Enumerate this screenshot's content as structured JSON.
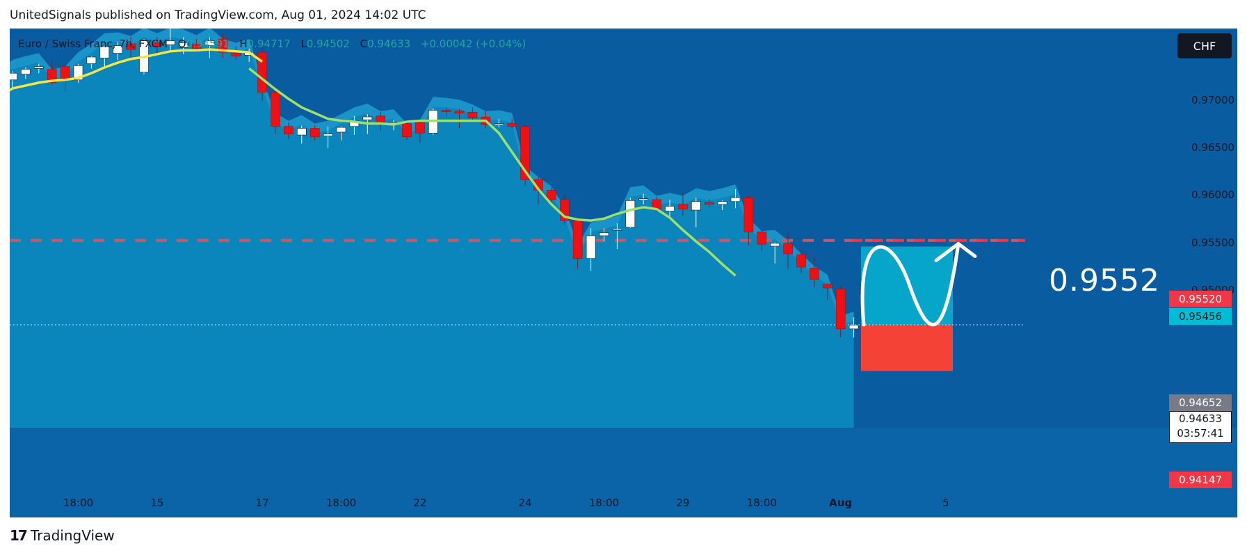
{
  "header": {
    "published": "UnitedSignals published on TradingView.com, Aug 01, 2024 14:02 UTC"
  },
  "legend": {
    "symbol": "Euro / Swiss Franc, 7h, FXCM",
    "o_label": "O",
    "o_value": "0.94591",
    "h_label": "H",
    "h_value": "0.94717",
    "l_label": "L",
    "l_value": "0.94502",
    "c_label": "C",
    "c_value": "0.94633",
    "change": "+0.00042 (+0.04%)"
  },
  "currency_button": "CHF",
  "footer": {
    "logo_mark": "17",
    "logo_text": "TradingView"
  },
  "annotation": {
    "target_text": "0.9552"
  },
  "price_labels": {
    "target": "0.95520",
    "ema": "0.95456",
    "prev": "0.94652",
    "last": "0.94633",
    "countdown": "03:57:41",
    "stop": "0.94147"
  },
  "colors": {
    "background": "#0a5ca1",
    "area": "#0b86bd",
    "band": "#1a93c8",
    "bull": "#ffffff",
    "bear": "#f00f13",
    "ema_yellow": "#f5e642",
    "ema_green": "#9ee06a",
    "target_line": "#f23645",
    "profit_box": "#05a6c9",
    "loss_box": "#f44336"
  },
  "chart_data": {
    "type": "candlestick",
    "symbol": "Euro / Swiss Franc, 7h, FXCM",
    "ylim": [
      0.9355,
      0.9775
    ],
    "y_ticks": [
      "0.95000",
      "0.95500",
      "0.96000",
      "0.96500",
      "0.97000"
    ],
    "x_ticks": [
      {
        "label": "18:00",
        "index": 5
      },
      {
        "label": "15",
        "index": 11
      },
      {
        "label": "17",
        "index": 19
      },
      {
        "label": "18:00",
        "index": 25
      },
      {
        "label": "22",
        "index": 31
      },
      {
        "label": "24",
        "index": 39
      },
      {
        "label": "18:00",
        "index": 45
      },
      {
        "label": "29",
        "index": 51
      },
      {
        "label": "18:00",
        "index": 57
      },
      {
        "label": "Aug",
        "index": 63,
        "bold": true
      },
      {
        "label": "5",
        "index": 71
      }
    ],
    "candles": [
      {
        "o": 0.9721,
        "h": 0.973,
        "l": 0.9712,
        "c": 0.9728
      },
      {
        "o": 0.9727,
        "h": 0.9734,
        "l": 0.9722,
        "c": 0.9732
      },
      {
        "o": 0.9733,
        "h": 0.9738,
        "l": 0.9728,
        "c": 0.9735
      },
      {
        "o": 0.9732,
        "h": 0.974,
        "l": 0.9716,
        "c": 0.9718
      },
      {
        "o": 0.9735,
        "h": 0.974,
        "l": 0.9708,
        "c": 0.9721
      },
      {
        "o": 0.9721,
        "h": 0.9738,
        "l": 0.9718,
        "c": 0.9736
      },
      {
        "o": 0.9738,
        "h": 0.9746,
        "l": 0.9733,
        "c": 0.9745
      },
      {
        "o": 0.9744,
        "h": 0.9757,
        "l": 0.9734,
        "c": 0.9756
      },
      {
        "o": 0.9749,
        "h": 0.9761,
        "l": 0.9742,
        "c": 0.9757
      },
      {
        "o": 0.9759,
        "h": 0.9766,
        "l": 0.9742,
        "c": 0.9753
      },
      {
        "o": 0.9729,
        "h": 0.9764,
        "l": 0.9727,
        "c": 0.9762
      },
      {
        "o": 0.976,
        "h": 0.9766,
        "l": 0.9748,
        "c": 0.9756
      },
      {
        "o": 0.9758,
        "h": 0.9776,
        "l": 0.9752,
        "c": 0.9762
      },
      {
        "o": 0.9755,
        "h": 0.9766,
        "l": 0.9748,
        "c": 0.976
      },
      {
        "o": 0.9758,
        "h": 0.9764,
        "l": 0.975,
        "c": 0.9754
      },
      {
        "o": 0.9757,
        "h": 0.9766,
        "l": 0.9744,
        "c": 0.9762
      },
      {
        "o": 0.9764,
        "h": 0.977,
        "l": 0.9744,
        "c": 0.975
      },
      {
        "o": 0.9749,
        "h": 0.9756,
        "l": 0.9742,
        "c": 0.9746
      },
      {
        "o": 0.9747,
        "h": 0.9754,
        "l": 0.974,
        "c": 0.975
      },
      {
        "o": 0.975,
        "h": 0.9755,
        "l": 0.9699,
        "c": 0.9708
      },
      {
        "o": 0.9708,
        "h": 0.9713,
        "l": 0.9664,
        "c": 0.9672
      },
      {
        "o": 0.9672,
        "h": 0.9676,
        "l": 0.9659,
        "c": 0.9664
      },
      {
        "o": 0.9663,
        "h": 0.9673,
        "l": 0.9654,
        "c": 0.967
      },
      {
        "o": 0.967,
        "h": 0.9673,
        "l": 0.9657,
        "c": 0.9661
      },
      {
        "o": 0.9662,
        "h": 0.9672,
        "l": 0.9649,
        "c": 0.9664
      },
      {
        "o": 0.9666,
        "h": 0.9672,
        "l": 0.9657,
        "c": 0.9671
      },
      {
        "o": 0.9672,
        "h": 0.9683,
        "l": 0.9663,
        "c": 0.9678
      },
      {
        "o": 0.9679,
        "h": 0.9685,
        "l": 0.9664,
        "c": 0.9682
      },
      {
        "o": 0.9683,
        "h": 0.9687,
        "l": 0.9668,
        "c": 0.9674
      },
      {
        "o": 0.9675,
        "h": 0.9679,
        "l": 0.9668,
        "c": 0.9676
      },
      {
        "o": 0.9675,
        "h": 0.9679,
        "l": 0.9658,
        "c": 0.9661
      },
      {
        "o": 0.9676,
        "h": 0.968,
        "l": 0.9655,
        "c": 0.9665
      },
      {
        "o": 0.9665,
        "h": 0.9691,
        "l": 0.9663,
        "c": 0.9689
      },
      {
        "o": 0.9689,
        "h": 0.9692,
        "l": 0.9683,
        "c": 0.9688
      },
      {
        "o": 0.9688,
        "h": 0.969,
        "l": 0.967,
        "c": 0.9686
      },
      {
        "o": 0.9687,
        "h": 0.9692,
        "l": 0.9679,
        "c": 0.9681
      },
      {
        "o": 0.9682,
        "h": 0.9688,
        "l": 0.967,
        "c": 0.9674
      },
      {
        "o": 0.9675,
        "h": 0.968,
        "l": 0.9671,
        "c": 0.9675
      },
      {
        "o": 0.9675,
        "h": 0.968,
        "l": 0.967,
        "c": 0.9672
      },
      {
        "o": 0.9672,
        "h": 0.9674,
        "l": 0.961,
        "c": 0.9616
      },
      {
        "o": 0.9616,
        "h": 0.9619,
        "l": 0.959,
        "c": 0.9605
      },
      {
        "o": 0.9605,
        "h": 0.9608,
        "l": 0.9592,
        "c": 0.9595
      },
      {
        "o": 0.9595,
        "h": 0.96,
        "l": 0.9569,
        "c": 0.9573
      },
      {
        "o": 0.9573,
        "h": 0.9576,
        "l": 0.9522,
        "c": 0.9533
      },
      {
        "o": 0.9533,
        "h": 0.9565,
        "l": 0.952,
        "c": 0.9557
      },
      {
        "o": 0.9557,
        "h": 0.9565,
        "l": 0.9551,
        "c": 0.956
      },
      {
        "o": 0.9563,
        "h": 0.957,
        "l": 0.9543,
        "c": 0.9564
      },
      {
        "o": 0.9566,
        "h": 0.9597,
        "l": 0.9565,
        "c": 0.9594
      },
      {
        "o": 0.9595,
        "h": 0.9601,
        "l": 0.959,
        "c": 0.9596
      },
      {
        "o": 0.9595,
        "h": 0.9598,
        "l": 0.9582,
        "c": 0.9585
      },
      {
        "o": 0.9583,
        "h": 0.9595,
        "l": 0.9576,
        "c": 0.9588
      },
      {
        "o": 0.959,
        "h": 0.9603,
        "l": 0.9578,
        "c": 0.9585
      },
      {
        "o": 0.9584,
        "h": 0.9597,
        "l": 0.9566,
        "c": 0.9593
      },
      {
        "o": 0.9592,
        "h": 0.9596,
        "l": 0.9587,
        "c": 0.959
      },
      {
        "o": 0.959,
        "h": 0.9594,
        "l": 0.9584,
        "c": 0.9593
      },
      {
        "o": 0.9593,
        "h": 0.9606,
        "l": 0.9586,
        "c": 0.9597
      },
      {
        "o": 0.9597,
        "h": 0.9599,
        "l": 0.9547,
        "c": 0.9561
      },
      {
        "o": 0.9561,
        "h": 0.9564,
        "l": 0.9541,
        "c": 0.9548
      },
      {
        "o": 0.9546,
        "h": 0.955,
        "l": 0.9528,
        "c": 0.9549
      },
      {
        "o": 0.9549,
        "h": 0.9561,
        "l": 0.9522,
        "c": 0.9538
      },
      {
        "o": 0.9537,
        "h": 0.9542,
        "l": 0.9518,
        "c": 0.9524
      },
      {
        "o": 0.9523,
        "h": 0.9534,
        "l": 0.9503,
        "c": 0.9511
      },
      {
        "o": 0.9506,
        "h": 0.9507,
        "l": 0.949,
        "c": 0.9502
      },
      {
        "o": 0.9501,
        "h": 0.9504,
        "l": 0.945,
        "c": 0.9459
      },
      {
        "o": 0.9459,
        "h": 0.9471,
        "l": 0.945,
        "c": 0.9463
      }
    ],
    "ema_yellow": [
      0.9712,
      0.9715,
      0.9718,
      0.972,
      0.9721,
      0.9723,
      0.9728,
      0.9734,
      0.9739,
      0.9743,
      0.9745,
      0.9748,
      0.9751,
      0.9752,
      0.9752,
      0.9753,
      0.9752,
      0.9751,
      0.975,
      0.974
    ],
    "ema_green": [
      0.9733,
      0.9722,
      0.9711,
      0.9701,
      0.9692,
      0.9686,
      0.968,
      0.9678,
      0.9677,
      0.9675,
      0.9675,
      0.9674,
      0.9677,
      0.9678,
      0.9678,
      0.9678,
      0.9678,
      0.9678,
      0.9678,
      0.9665,
      0.9645,
      0.9625,
      0.9606,
      0.959,
      0.9577,
      0.9574,
      0.9573,
      0.9575,
      0.958,
      0.9584,
      0.9587,
      0.9585,
      0.9576,
      0.9563,
      0.9551,
      0.954,
      0.9527,
      0.9515
    ],
    "ema_green_start": 20,
    "target_price": 0.9552,
    "position": {
      "entry": 0.94633,
      "take_profit": 0.95456,
      "stop": 0.94147
    },
    "last_price": 0.94633
  }
}
